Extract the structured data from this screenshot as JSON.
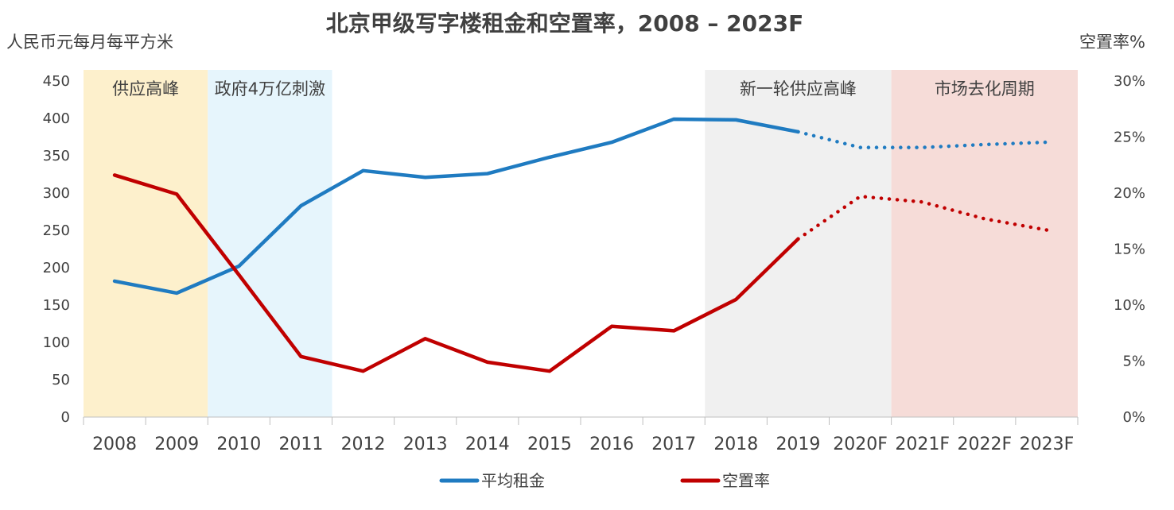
{
  "chart_data": {
    "type": "line",
    "title": "北京甲级写字楼租金和空置率，2008 – 2023F",
    "ylabel_left": "人民币元每月每平方米",
    "ylabel_right": "空置率%",
    "categories": [
      "2008",
      "2009",
      "2010",
      "2011",
      "2012",
      "2013",
      "2014",
      "2015",
      "2016",
      "2017",
      "2018",
      "2019",
      "2020F",
      "2021F",
      "2022F",
      "2023F"
    ],
    "ylim_left": [
      0,
      450
    ],
    "yticks_left": [
      "0",
      "50",
      "100",
      "150",
      "200",
      "250",
      "300",
      "350",
      "400",
      "450"
    ],
    "ylim_right": [
      0,
      30
    ],
    "yticks_right": [
      "0%",
      "5%",
      "10%",
      "15%",
      "20%",
      "25%",
      "30%"
    ],
    "forecast_start_index": 11,
    "series": [
      {
        "name": "平均租金",
        "axis": "left",
        "color": "#1f7bc1",
        "values": [
          182,
          166,
          202,
          283,
          330,
          321,
          326,
          348,
          368,
          399,
          398,
          382,
          361,
          361,
          365,
          368
        ]
      },
      {
        "name": "空置率",
        "axis": "right",
        "color": "#c00000",
        "values": [
          21.6,
          19.9,
          12.7,
          5.4,
          4.1,
          7.0,
          4.9,
          4.1,
          8.1,
          7.7,
          10.5,
          15.9,
          19.7,
          19.2,
          17.7,
          16.7
        ]
      }
    ],
    "bands": [
      {
        "label": "供应高峰",
        "from_index": 0,
        "to_index": 1,
        "color": "#fdf0cc"
      },
      {
        "label": "政府4万亿刺激",
        "from_index": 2,
        "to_index": 3,
        "color": "#e6f5fc"
      },
      {
        "label": "新一轮供应高峰",
        "from_index": 10,
        "to_index": 12,
        "color": "#f0f0f0"
      },
      {
        "label": "市场去化周期",
        "from_index": 13,
        "to_index": 15,
        "color": "#f6dcd8"
      }
    ],
    "legend_position": "bottom-center",
    "grid": false
  }
}
